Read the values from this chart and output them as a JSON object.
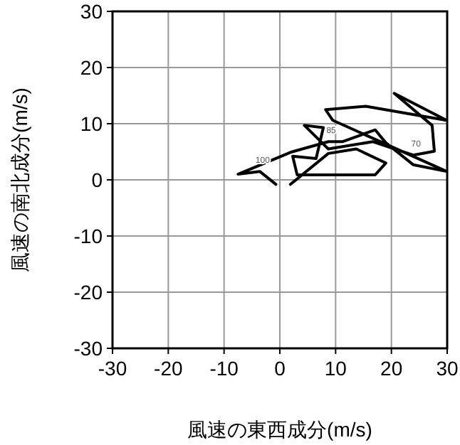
{
  "chart_data": {
    "type": "line",
    "xlabel": "風速の東西成分(m/s)",
    "ylabel": "風速の南北成分(m/s)",
    "xlim": [
      -30,
      30
    ],
    "ylim": [
      -30,
      30
    ],
    "xticks": [
      -30,
      -20,
      -10,
      0,
      10,
      20,
      30
    ],
    "yticks": [
      -30,
      -20,
      -10,
      0,
      10,
      20,
      30
    ],
    "grid": true,
    "marker": "none",
    "line_style": "solid",
    "series": [
      {
        "color": "#000000",
        "x": [
          -0.7,
          -3.6,
          -7.5,
          1.9,
          8.7,
          11.2,
          17.1,
          19.0,
          23.9,
          29.9,
          9.5,
          8.2,
          15.4,
          29.9,
          20.5,
          27.3,
          27.7,
          23.9,
          16.7,
          8.7,
          4.4,
          7.8,
          6.5,
          2.3,
          3.1,
          17.1,
          19.0,
          13.7,
          8.7,
          1.9
        ],
        "values": [
          -0.8,
          1.5,
          1.0,
          4.9,
          6.8,
          6.8,
          8.9,
          6.6,
          2.7,
          1.5,
          10.6,
          12.5,
          13.1,
          10.6,
          15.4,
          9.7,
          5.1,
          4.4,
          6.8,
          5.5,
          9.7,
          9.3,
          3.8,
          4.2,
          0.9,
          0.9,
          3.0,
          5.5,
          4.7,
          -0.8
        ]
      }
    ],
    "annotations": [
      {
        "text": "100",
        "x": -3.6,
        "y": 1.5
      },
      {
        "text": "85",
        "x": 8.7,
        "y": 6.8
      },
      {
        "text": "70",
        "x": 23.9,
        "y": 4.4
      }
    ]
  }
}
